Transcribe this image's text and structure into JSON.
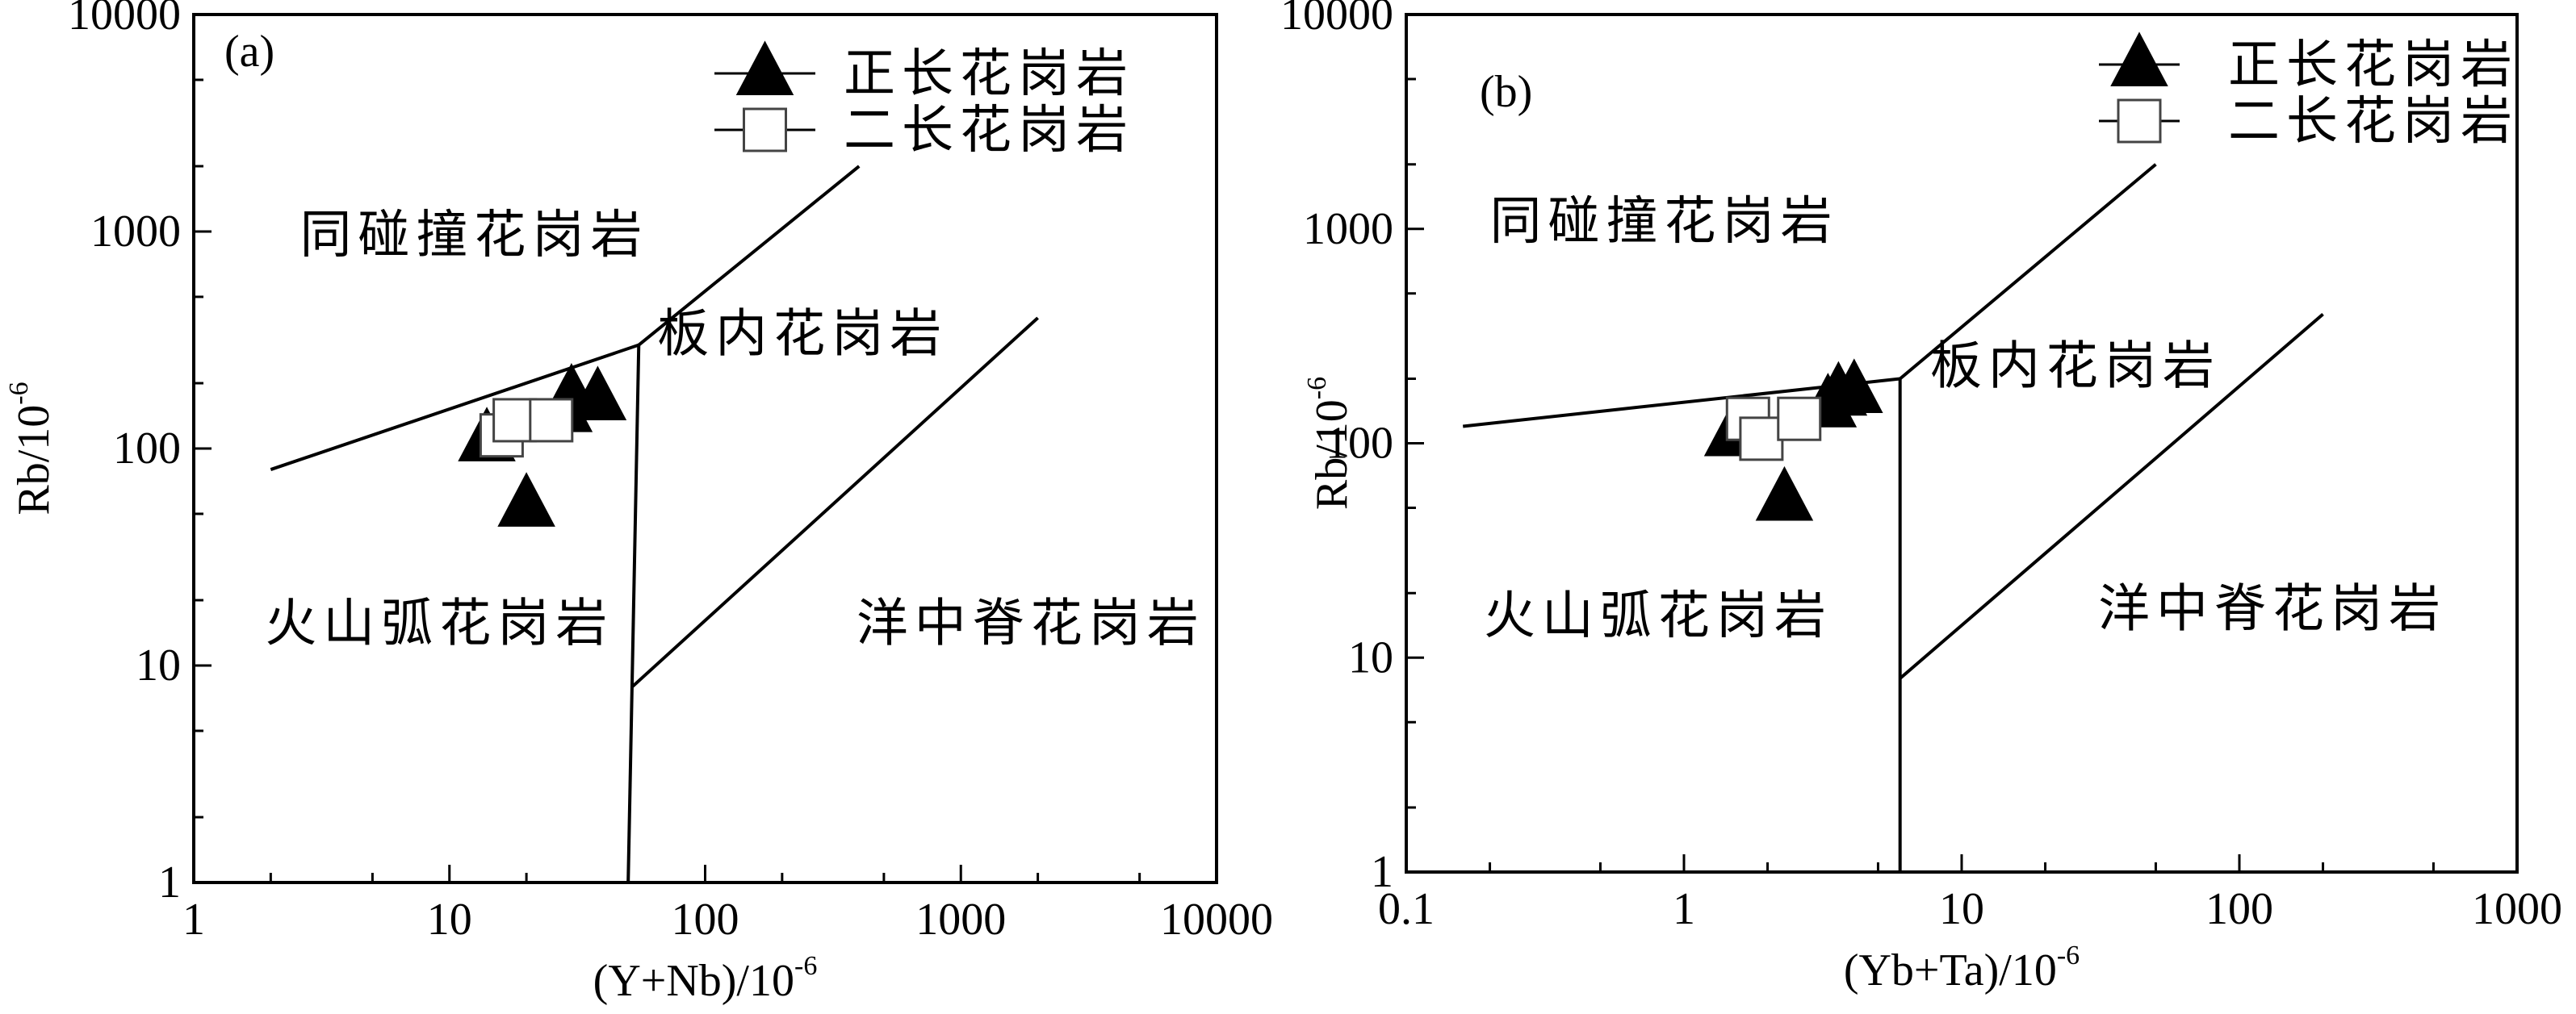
{
  "chart_data": [
    {
      "type": "scatter",
      "panel_label": "(a)",
      "xscale": "log",
      "yscale": "log",
      "xlim": [
        1,
        10000
      ],
      "ylim": [
        1,
        10000
      ],
      "xlabel": {
        "main": "(Y+Nb)/10",
        "sup": "-6"
      },
      "ylabel": {
        "main": "Rb/10",
        "sup": "-6"
      },
      "xticks": [
        1,
        10,
        100,
        1000,
        10000
      ],
      "xtick_labels": [
        "1",
        "10",
        "100",
        "1000",
        "10000"
      ],
      "yticks": [
        1,
        10,
        100,
        1000,
        10000
      ],
      "ytick_labels": [
        "1",
        "10",
        "100",
        "1000",
        "10000"
      ],
      "boundaries": [
        [
          [
            2,
            80
          ],
          [
            55,
            300
          ]
        ],
        [
          [
            55,
            300
          ],
          [
            400,
            2000
          ]
        ],
        [
          [
            55,
            300
          ],
          [
            50,
            1
          ]
        ],
        [
          [
            52,
            8
          ],
          [
            2000,
            400
          ]
        ]
      ],
      "regions": [
        {
          "label": "同碰撞花岗岩",
          "x": 2.6,
          "y": 800
        },
        {
          "label": "板内花岗岩",
          "x": 65,
          "y": 280
        },
        {
          "label": "火山弧花岗岩",
          "x": 1.9,
          "y": 13
        },
        {
          "label": "洋中脊花岗岩",
          "x": 390,
          "y": 13
        }
      ],
      "series": [
        {
          "name": "正长花岗岩",
          "marker": "triangle",
          "color": "#000000",
          "points": [
            [
              14,
              110
            ],
            [
              20,
              55
            ],
            [
              28,
              150
            ],
            [
              30,
              175
            ],
            [
              38,
              170
            ]
          ]
        },
        {
          "name": "二长花岗岩",
          "marker": "square",
          "color": "#ffffff",
          "points": [
            [
              16,
              115
            ],
            [
              18,
              135
            ],
            [
              25,
              135
            ]
          ]
        }
      ],
      "legend_position": "top-right"
    },
    {
      "type": "scatter",
      "panel_label": "(b)",
      "xscale": "log",
      "yscale": "log",
      "xlim": [
        0.1,
        1000
      ],
      "ylim": [
        1,
        10000
      ],
      "xlabel": {
        "main": "(Yb+Ta)/10",
        "sup": "-6"
      },
      "ylabel": {
        "main": "Rb/10",
        "sup": "-6"
      },
      "xticks": [
        0.1,
        1,
        10,
        100,
        1000
      ],
      "xtick_labels": [
        "0.1",
        "1",
        "10",
        "100",
        "1000"
      ],
      "yticks": [
        1,
        10,
        100,
        1000,
        10000
      ],
      "ytick_labels": [
        "1",
        "10",
        "100",
        "1000",
        "10000"
      ],
      "boundaries": [
        [
          [
            0.16,
            120
          ],
          [
            6,
            200
          ]
        ],
        [
          [
            6,
            200
          ],
          [
            50,
            2000
          ]
        ],
        [
          [
            6,
            200
          ],
          [
            6,
            1
          ]
        ],
        [
          [
            6,
            8
          ],
          [
            200,
            400
          ]
        ]
      ],
      "regions": [
        {
          "label": "同碰撞花岗岩",
          "x": 0.2,
          "y": 900
        },
        {
          "label": "板内花岗岩",
          "x": 7.7,
          "y": 190
        },
        {
          "label": "火山弧花岗岩",
          "x": 0.19,
          "y": 13
        },
        {
          "label": "洋中脊花岗岩",
          "x": 31,
          "y": 14
        }
      ],
      "series": [
        {
          "name": "正长花岗岩",
          "marker": "triangle",
          "color": "#000000",
          "points": [
            [
              1.5,
              110
            ],
            [
              2.3,
              55
            ],
            [
              3.3,
              150
            ],
            [
              3.6,
              170
            ],
            [
              4.1,
              175
            ]
          ]
        },
        {
          "name": "二长花岗岩",
          "marker": "square",
          "color": "#ffffff",
          "points": [
            [
              1.7,
              130
            ],
            [
              1.9,
              105
            ],
            [
              2.6,
              130
            ]
          ]
        }
      ],
      "legend_position": "top-right"
    }
  ]
}
